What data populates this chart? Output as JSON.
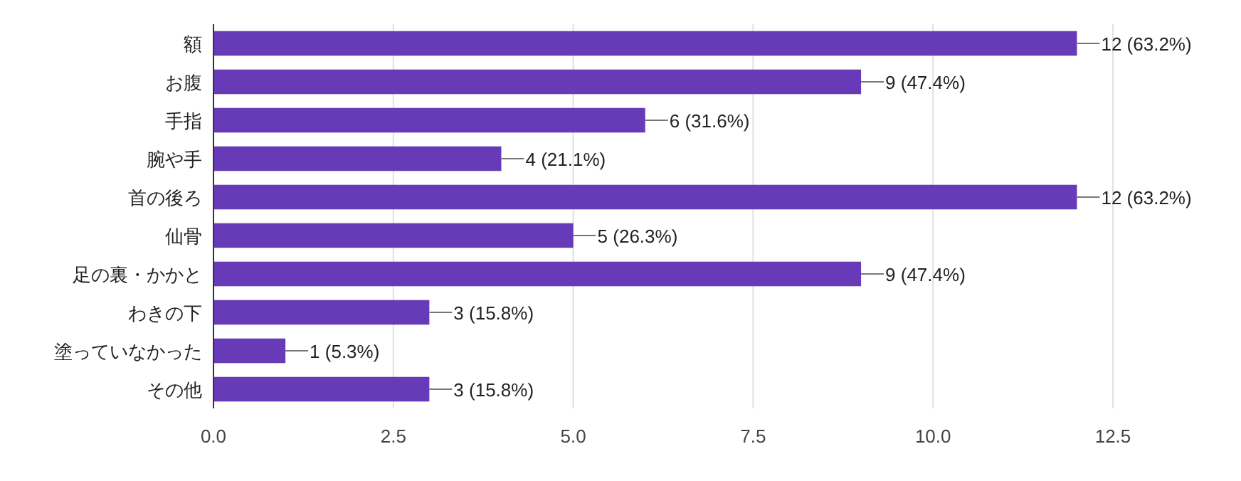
{
  "chart_data": {
    "type": "bar",
    "orientation": "horizontal",
    "categories": [
      "額",
      "お腹",
      "手指",
      "腕や手",
      "首の後ろ",
      "仙骨",
      "足の裏・かかと",
      "わきの下",
      "塗っていなかった",
      "その他"
    ],
    "values": [
      12,
      9,
      6,
      4,
      12,
      5,
      9,
      3,
      1,
      3
    ],
    "value_labels": [
      "12 (63.2%)",
      "9 (47.4%)",
      "6 (31.6%)",
      "4 (21.1%)",
      "12 (63.2%)",
      "5 (26.3%)",
      "9 (47.4%)",
      "3 (15.8%)",
      "1 (5.3%)",
      "3 (15.8%)"
    ],
    "color": "#673ab7",
    "xlim": [
      0,
      12.5
    ],
    "xticks": [
      {
        "value": 0,
        "label": "0.0"
      },
      {
        "value": 2.5,
        "label": "2.5"
      },
      {
        "value": 5,
        "label": "5.0"
      },
      {
        "value": 7.5,
        "label": "7.5"
      },
      {
        "value": 10,
        "label": "10.0"
      },
      {
        "value": 12.5,
        "label": "12.5"
      }
    ],
    "grid": "x"
  }
}
